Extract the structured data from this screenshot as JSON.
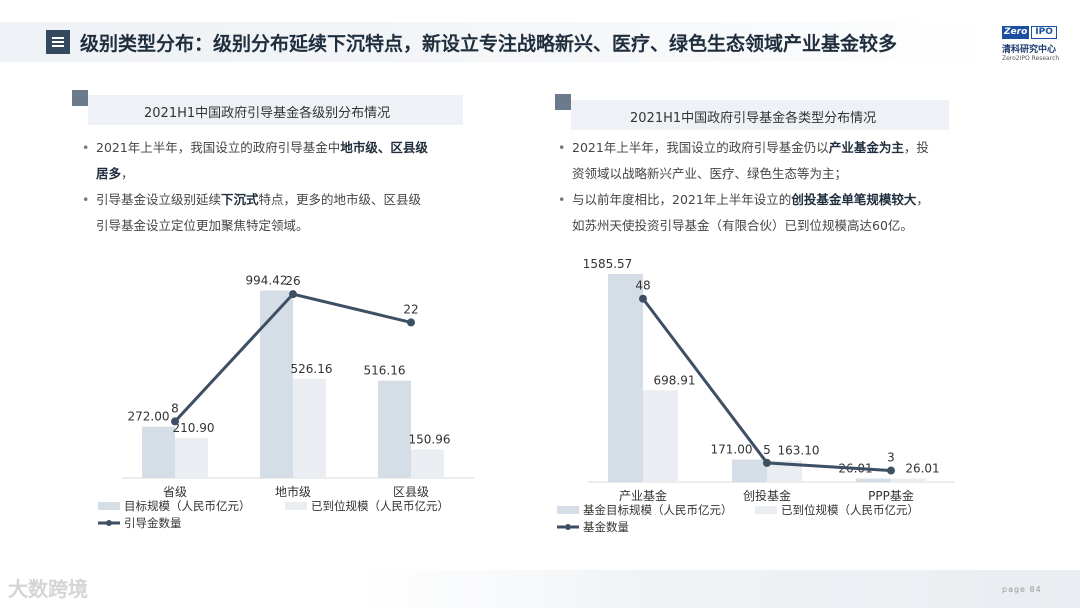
{
  "header": {
    "title": "级别类型分布：级别分布延续下沉特点，新设立专注战略新兴、医疗、绿色生态领域产业基金较多",
    "logo_top_left": "Zero",
    "logo_top_right": "IPO",
    "logo_cn": "清科研究中心",
    "logo_en": "Zero2IPO Research"
  },
  "left": {
    "section_title": "2021H1中国政府引导基金各级别分布情况",
    "bullets": [
      [
        {
          "t": "2021年上半年，我国设立的政府引导基金中",
          "b": false
        },
        {
          "t": "地市级、区县级",
          "b": true
        }
      ],
      [
        {
          "t": "居多",
          "b": true
        },
        {
          "t": "，",
          "b": false
        }
      ],
      [
        {
          "t": "引导基金设立级别延续",
          "b": false
        },
        {
          "t": "下沉式",
          "b": true
        },
        {
          "t": "特点，更多的地市级、区县级",
          "b": false
        }
      ],
      [
        {
          "t": "引导基金设立定位更加聚焦特定领域。",
          "b": false
        }
      ]
    ],
    "bullet_starts": [
      0,
      2
    ]
  },
  "right": {
    "section_title": "2021H1中国政府引导基金各类型分布情况",
    "bullets": [
      [
        {
          "t": "2021年上半年，我国设立的政府引导基金仍以",
          "b": false
        },
        {
          "t": "产业基金为主",
          "b": true
        },
        {
          "t": "，投",
          "b": false
        }
      ],
      [
        {
          "t": "资领域以战略新兴产业、医疗、绿色生态等为主；",
          "b": false
        }
      ],
      [
        {
          "t": "与以前年度相比，2021年上半年设立的",
          "b": false
        },
        {
          "t": "创投基金单笔规模较大",
          "b": true
        },
        {
          "t": "，",
          "b": false
        }
      ],
      [
        {
          "t": "如苏州天使投资引导基金（有限合伙）已到位规模高达60亿。",
          "b": false
        }
      ]
    ],
    "bullet_starts": [
      0,
      2
    ]
  },
  "chart_data": [
    {
      "type": "bar",
      "categories": [
        "省级",
        "地市级",
        "区县级"
      ],
      "series": [
        {
          "name": "目标规模（人民币亿元）",
          "type": "bar",
          "values": [
            272.0,
            994.42,
            516.16
          ],
          "color": "#d5dee6"
        },
        {
          "name": "已到位规模（人民币亿元）",
          "type": "bar",
          "values": [
            210.9,
            526.16,
            150.96
          ],
          "color": "#eaeef2"
        },
        {
          "name": "引导金数量",
          "type": "line",
          "values": [
            8,
            26,
            22
          ],
          "color": "#3d4f63"
        }
      ],
      "value_labels": [
        [
          "272.00",
          "994.42",
          "516.16"
        ],
        [
          "210.90",
          "526.16",
          "150.96"
        ],
        [
          "8",
          "26",
          "22"
        ]
      ],
      "ylim_bar": [
        0,
        1050
      ],
      "ylim_line": [
        0,
        28
      ],
      "legend": "bottom",
      "grid": false
    },
    {
      "type": "bar",
      "categories": [
        "产业基金",
        "创投基金",
        "PPP基金"
      ],
      "series": [
        {
          "name": "基金目标规模（人民币亿元）",
          "type": "bar",
          "values": [
            1585.57,
            171.0,
            26.01
          ],
          "color": "#d5dee6"
        },
        {
          "name": "已到位规模（人民币亿元）",
          "type": "bar",
          "values": [
            698.91,
            163.1,
            26.01
          ],
          "color": "#eaeef2"
        },
        {
          "name": "基金数量",
          "type": "line",
          "values": [
            48,
            5,
            3
          ],
          "color": "#3d4f63"
        }
      ],
      "value_labels": [
        [
          "1585.57",
          "171.00",
          "26.01"
        ],
        [
          "698.91",
          "163.10",
          "26.01"
        ],
        [
          "48",
          "5",
          "3"
        ]
      ],
      "ylim_bar": [
        0,
        1600
      ],
      "ylim_line": [
        0,
        55
      ],
      "legend": "bottom",
      "grid": false
    }
  ],
  "footer": {
    "page_label": "page",
    "page_number": "84",
    "watermark": "大数跨境"
  }
}
